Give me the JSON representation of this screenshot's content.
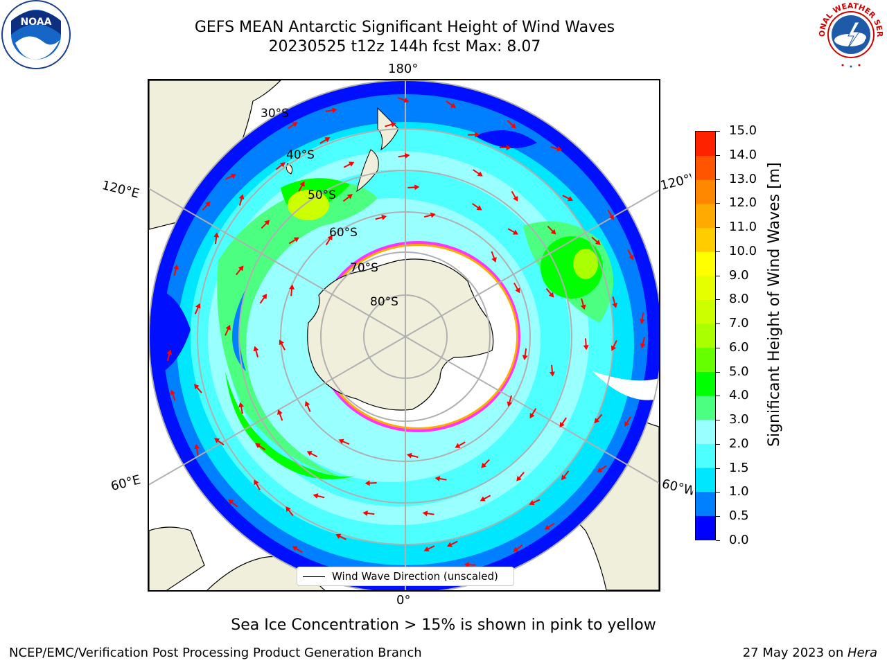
{
  "header": {
    "title_line1": "GEFS MEAN Antarctic Significant Height of Wind Waves",
    "title_line2": "20230525 t12z 144h fcst   Max: 8.07"
  },
  "logos": {
    "left": {
      "name": "noaa-logo",
      "text": "NOAA"
    },
    "right": {
      "name": "national-weather-service-logo",
      "text": "NATIONAL WEATHER SERVICE"
    }
  },
  "map": {
    "longitude_labels": [
      "180°",
      "120°E",
      "120°W",
      "60°E",
      "60°W",
      "0°"
    ],
    "latitude_labels": [
      "30°S",
      "40°S",
      "50°S",
      "60°S",
      "70°S",
      "80°S"
    ],
    "legend_label": "Wind Wave Direction (unscaled)",
    "arrow_color": "#ff0000",
    "sea_ice_colors": [
      "#ff33ff",
      "#ffaa00",
      "#ffff00"
    ],
    "land_color": "#efefdb"
  },
  "colorbar": {
    "label": "Significant Height of Wind Waves [m]",
    "ticks": [
      "0.0",
      "0.5",
      "1.0",
      "1.5",
      "2.0",
      "3.0",
      "4.0",
      "5.0",
      "6.0",
      "7.0",
      "8.0",
      "9.0",
      "10.0",
      "11.0",
      "12.0",
      "13.0",
      "14.0",
      "15.0"
    ],
    "colors": [
      "#0000ff",
      "#0080ff",
      "#00e6ff",
      "#4dffff",
      "#99ffff",
      "#4dff80",
      "#00ff00",
      "#66ff00",
      "#aaff00",
      "#ccff00",
      "#e6ff00",
      "#ffff00",
      "#ffcc00",
      "#ffaa00",
      "#ff8800",
      "#ff5500",
      "#ff2200"
    ]
  },
  "footer": {
    "subtitle": "Sea Ice Concentration > 15% is shown in pink to yellow",
    "left": "NCEP/EMC/Verification Post Processing Product Generation Branch",
    "right_prefix": "27 May 2023 on ",
    "right_host": "Hera"
  }
}
